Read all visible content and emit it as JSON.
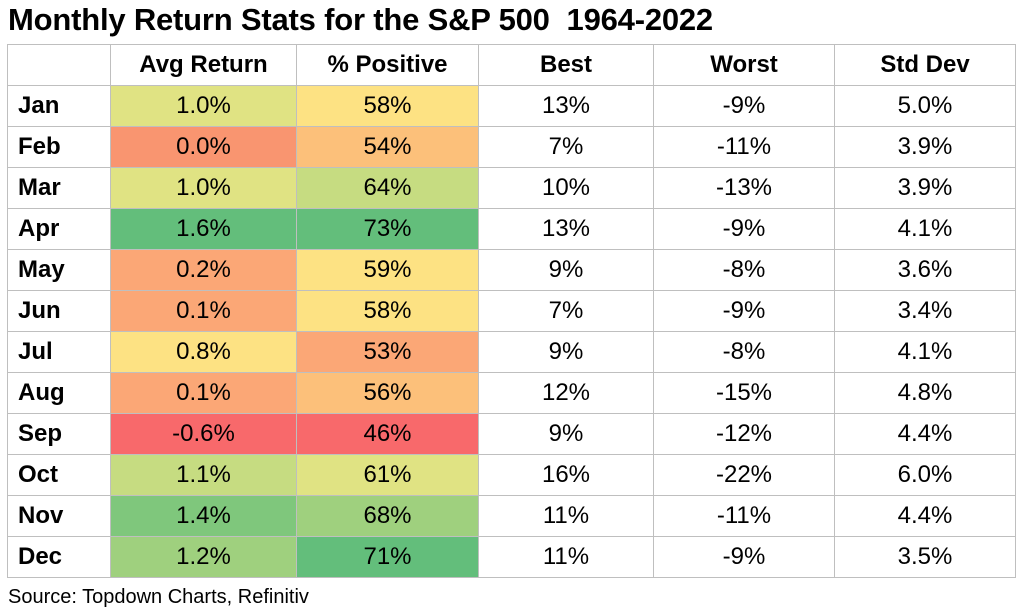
{
  "title": "Monthly Return Stats for the S&P 500  1964-2022",
  "source": "Source: Topdown Charts, Refinitiv",
  "colors": {
    "green_strong": "#63be7b",
    "green_mid": "#9fd07e",
    "green_light": "#c6dc81",
    "yellow_green": "#e0e383",
    "yellow": "#fde283",
    "orange_light": "#fcc07a",
    "orange": "#fba776",
    "orange_dark": "#f99570",
    "red": "#f8696b"
  },
  "chart_data": {
    "type": "table",
    "title": "Monthly Return Stats for the S&P 500  1964-2022",
    "columns": [
      "",
      "Avg Return",
      "% Positive",
      "Best",
      "Worst",
      "Std Dev"
    ],
    "rows": [
      {
        "month": "Jan",
        "avg": "1.0%",
        "pos": "58%",
        "best": "13%",
        "worst": "-9%",
        "std": "5.0%",
        "avg_color": "#e0e383",
        "pos_color": "#fde283"
      },
      {
        "month": "Feb",
        "avg": "0.0%",
        "pos": "54%",
        "best": "7%",
        "worst": "-11%",
        "std": "3.9%",
        "avg_color": "#f99570",
        "pos_color": "#fcc07a"
      },
      {
        "month": "Mar",
        "avg": "1.0%",
        "pos": "64%",
        "best": "10%",
        "worst": "-13%",
        "std": "3.9%",
        "avg_color": "#e0e383",
        "pos_color": "#c6dc81"
      },
      {
        "month": "Apr",
        "avg": "1.6%",
        "pos": "73%",
        "best": "13%",
        "worst": "-9%",
        "std": "4.1%",
        "avg_color": "#63be7b",
        "pos_color": "#63be7b"
      },
      {
        "month": "May",
        "avg": "0.2%",
        "pos": "59%",
        "best": "9%",
        "worst": "-8%",
        "std": "3.6%",
        "avg_color": "#fba776",
        "pos_color": "#fde283"
      },
      {
        "month": "Jun",
        "avg": "0.1%",
        "pos": "58%",
        "best": "7%",
        "worst": "-9%",
        "std": "3.4%",
        "avg_color": "#fba776",
        "pos_color": "#fde283"
      },
      {
        "month": "Jul",
        "avg": "0.8%",
        "pos": "53%",
        "best": "9%",
        "worst": "-8%",
        "std": "4.1%",
        "avg_color": "#fde283",
        "pos_color": "#fba776"
      },
      {
        "month": "Aug",
        "avg": "0.1%",
        "pos": "56%",
        "best": "12%",
        "worst": "-15%",
        "std": "4.8%",
        "avg_color": "#fba776",
        "pos_color": "#fcc07a"
      },
      {
        "month": "Sep",
        "avg": "-0.6%",
        "pos": "46%",
        "best": "9%",
        "worst": "-12%",
        "std": "4.4%",
        "avg_color": "#f8696b",
        "pos_color": "#f8696b"
      },
      {
        "month": "Oct",
        "avg": "1.1%",
        "pos": "61%",
        "best": "16%",
        "worst": "-22%",
        "std": "6.0%",
        "avg_color": "#c6dc81",
        "pos_color": "#e0e383"
      },
      {
        "month": "Nov",
        "avg": "1.4%",
        "pos": "68%",
        "best": "11%",
        "worst": "-11%",
        "std": "4.4%",
        "avg_color": "#7fc77c",
        "pos_color": "#9fd07e"
      },
      {
        "month": "Dec",
        "avg": "1.2%",
        "pos": "71%",
        "best": "11%",
        "worst": "-9%",
        "std": "3.5%",
        "avg_color": "#9fd07e",
        "pos_color": "#63be7b"
      }
    ]
  }
}
